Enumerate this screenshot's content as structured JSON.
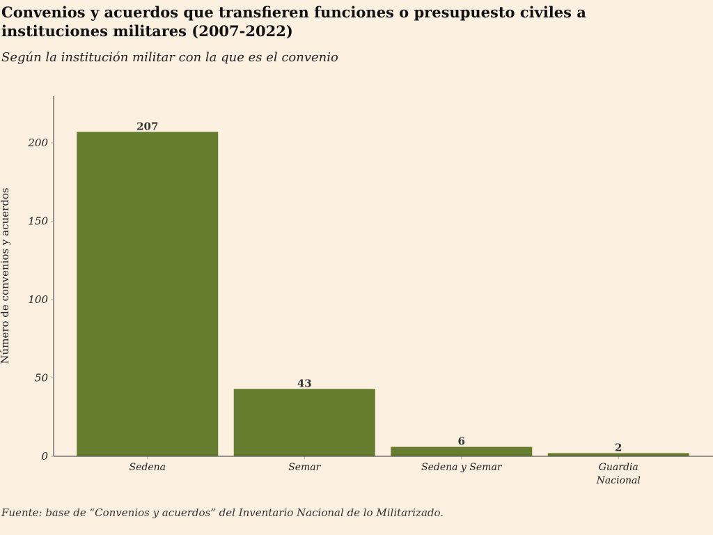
{
  "chart_data": {
    "type": "bar",
    "title": "Convenios y acuerdos que transfieren funciones o presupuesto civiles a instituciones militares (2007-2022)",
    "subtitle": "Según la institución militar con la que es el convenio",
    "categories": [
      [
        "Sedena"
      ],
      [
        "Semar"
      ],
      [
        "Sedena y Semar"
      ],
      [
        "Guardia",
        "Nacional"
      ]
    ],
    "values": [
      207,
      43,
      6,
      2
    ],
    "data_labels": [
      "207",
      "43",
      "6",
      "2"
    ],
    "xlabel": "",
    "ylabel": "Número de convenios y acuerdos",
    "ylim": [
      0,
      230
    ],
    "yticks": [
      0,
      50,
      100,
      150,
      200
    ],
    "grid": false,
    "bar_color": "#667d30",
    "source": "Fuente: base de “Convenios y acuerdos” del Inventario Nacional de lo Militarizado."
  }
}
